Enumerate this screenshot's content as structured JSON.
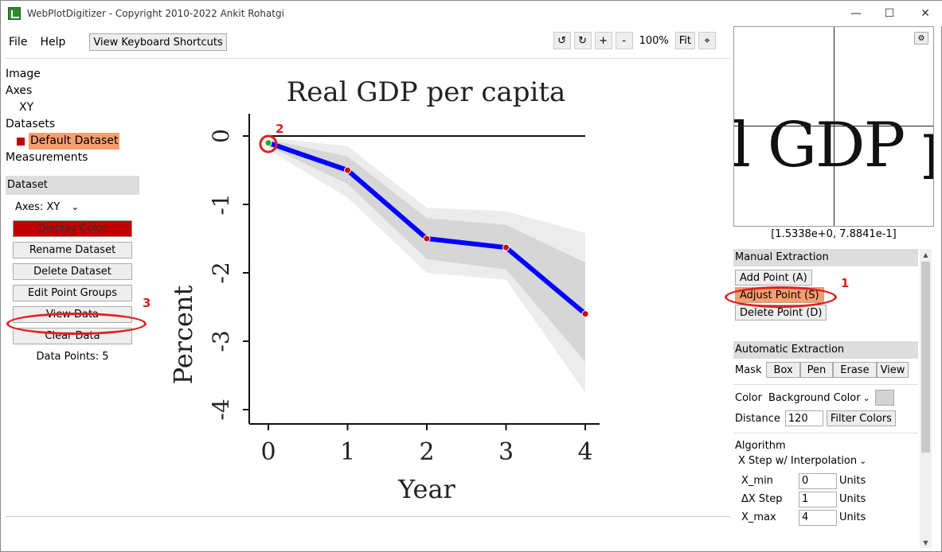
{
  "window": {
    "title": "WebPlotDigitizer - Copyright 2010-2022 Ankit Rohatgi",
    "minimize_glyph": "—",
    "maximize_glyph": "☐",
    "close_glyph": "✕"
  },
  "menu": {
    "file": "File",
    "help": "Help",
    "shortcuts": "View Keyboard Shortcuts"
  },
  "zoom_tools": {
    "rotate_left": "↺",
    "rotate_right": "↻",
    "zoom_in": "+",
    "zoom_out": "-",
    "zoom_level": "100%",
    "fit": "Fit",
    "crosshair": "⌖"
  },
  "tree": {
    "image": "Image",
    "axes": "Axes",
    "axes_xy": "XY",
    "datasets": "Datasets",
    "default_dataset": "Default Dataset",
    "measurements": "Measurements"
  },
  "dataset_panel": {
    "header": "Dataset",
    "axes_select": "Axes:  XY",
    "display_color": "Display Color",
    "rename": "Rename Dataset",
    "delete": "Delete Dataset",
    "edit_groups": "Edit Point Groups",
    "view_data": "View Data",
    "clear_data": "Clear Data",
    "data_points": "Data Points: 5"
  },
  "annotations": {
    "one": "1",
    "two": "2",
    "three": "3"
  },
  "chart_data": {
    "type": "line",
    "title": "Real GDP per capita",
    "xlabel": "Year",
    "ylabel": "Percent",
    "x": [
      0,
      1,
      2,
      3,
      4
    ],
    "xlim": [
      0,
      4
    ],
    "ylim": [
      -4,
      0
    ],
    "xticks": [
      "0",
      "1",
      "2",
      "3",
      "4"
    ],
    "yticks": [
      "0",
      "-1",
      "-2",
      "-3",
      "-4"
    ],
    "series": [
      {
        "values": [
          -0.1,
          -0.5,
          -1.5,
          -1.63,
          -2.6
        ]
      }
    ],
    "inner_band": {
      "upper": [
        -0.05,
        -0.3,
        -1.2,
        -1.3,
        -1.85
      ],
      "lower": [
        -0.15,
        -0.7,
        -1.8,
        -1.95,
        -3.3
      ]
    },
    "outer_band": {
      "upper": [
        -0.02,
        -0.15,
        -1.05,
        -1.1,
        -1.42
      ],
      "lower": [
        -0.2,
        -0.9,
        -2.0,
        -2.1,
        -3.75
      ]
    },
    "colors": {
      "line": "#0000ff",
      "points": "#cc0000",
      "inner_band": "#d6d6d6",
      "outer_band": "#ececec"
    }
  },
  "magnifier": {
    "text": "l GDP p",
    "settings_glyph": "⚙",
    "coords": "[1.5338e+0, 7.8841e-1]"
  },
  "manual": {
    "header": "Manual Extraction",
    "add": "Add Point (A)",
    "adjust": "Adjust Point (S)",
    "delete": "Delete Point (D)"
  },
  "automatic": {
    "header": "Automatic Extraction",
    "mask_label": "Mask",
    "box": "Box",
    "pen": "Pen",
    "erase": "Erase",
    "view": "View",
    "color_label": "Color",
    "color_value": "Background Color",
    "distance_label": "Distance",
    "distance_value": "120",
    "filter_colors": "Filter Colors",
    "algorithm_label": "Algorithm",
    "algorithm_value": "X Step w/ Interpolation",
    "xmin_label": "X_min",
    "xmin_value": "0",
    "xstep_label": "ΔX Step",
    "xstep_value": "1",
    "xmax_label": "X_max",
    "xmax_value": "4",
    "units": "Units"
  }
}
